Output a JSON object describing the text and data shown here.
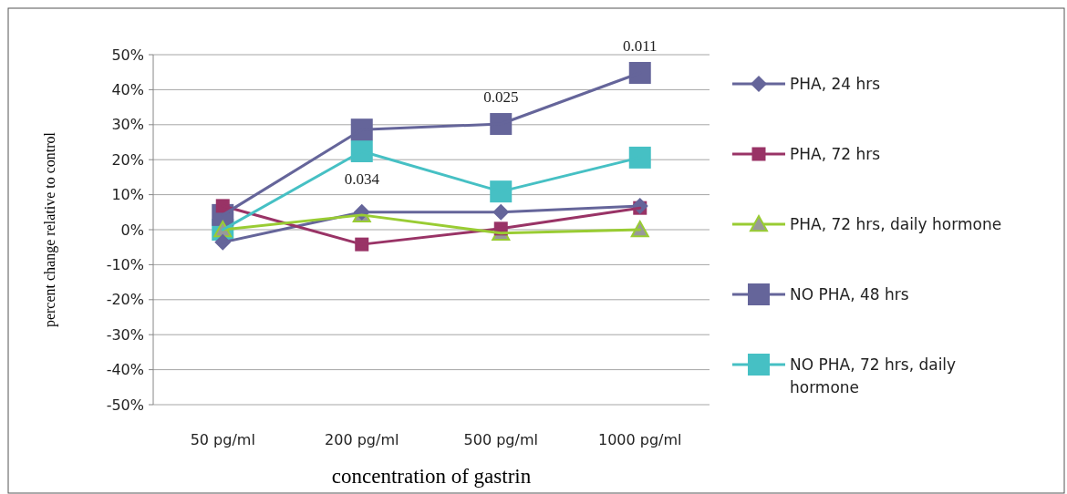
{
  "chart_data": {
    "type": "line",
    "xlabel": "concentration of gastrin",
    "ylabel": "percent change relative to control",
    "categories": [
      "50 pg/ml",
      "200 pg/ml",
      "500 pg/ml",
      "1000 pg/ml"
    ],
    "series": [
      {
        "name": "PHA, 24 hrs",
        "color": "#65659a",
        "marker": "diamond",
        "values": [
          -3.6,
          5,
          5,
          6.8
        ]
      },
      {
        "name": "PHA, 72 hrs",
        "color": "#993366",
        "marker": "square",
        "values": [
          6.8,
          -4.2,
          0.3,
          6.2
        ]
      },
      {
        "name": "PHA, 72 hrs, daily hormone",
        "color": "#99cc33",
        "marker": "triangle",
        "values": [
          0,
          4.2,
          -1,
          0
        ]
      },
      {
        "name": "NO PHA, 48 hrs",
        "color": "#65659a",
        "marker": "square",
        "values": [
          4.2,
          28.6,
          30.2,
          44.8
        ]
      },
      {
        "name": "NO PHA, 72 hrs, daily hormone",
        "color": "#46c0c4",
        "marker": "square",
        "values": [
          0,
          22.4,
          10.9,
          20.6
        ]
      }
    ],
    "ylim": [
      -50,
      50
    ],
    "yticks": [
      {
        "value": -50,
        "label": "-50%"
      },
      {
        "value": -40,
        "label": "-40%"
      },
      {
        "value": -30,
        "label": "-30%"
      },
      {
        "value": -20,
        "label": "-20%"
      },
      {
        "value": -10,
        "label": "-10%"
      },
      {
        "value": 0,
        "label": "0%"
      },
      {
        "value": 10,
        "label": "10%"
      },
      {
        "value": 20,
        "label": "20%"
      },
      {
        "value": 30,
        "label": "30%"
      },
      {
        "value": 40,
        "label": "40%"
      },
      {
        "value": 50,
        "label": "50%"
      }
    ],
    "grid": "y",
    "legend": "right",
    "annotations": [
      {
        "text": "0.011",
        "x": "1000 pg/ml",
        "y": 44.8
      },
      {
        "text": "0.025",
        "x": "500 pg/ml",
        "y": 30.2
      },
      {
        "text": "0.034",
        "x": "200 pg/ml",
        "y": 22.4
      }
    ]
  }
}
